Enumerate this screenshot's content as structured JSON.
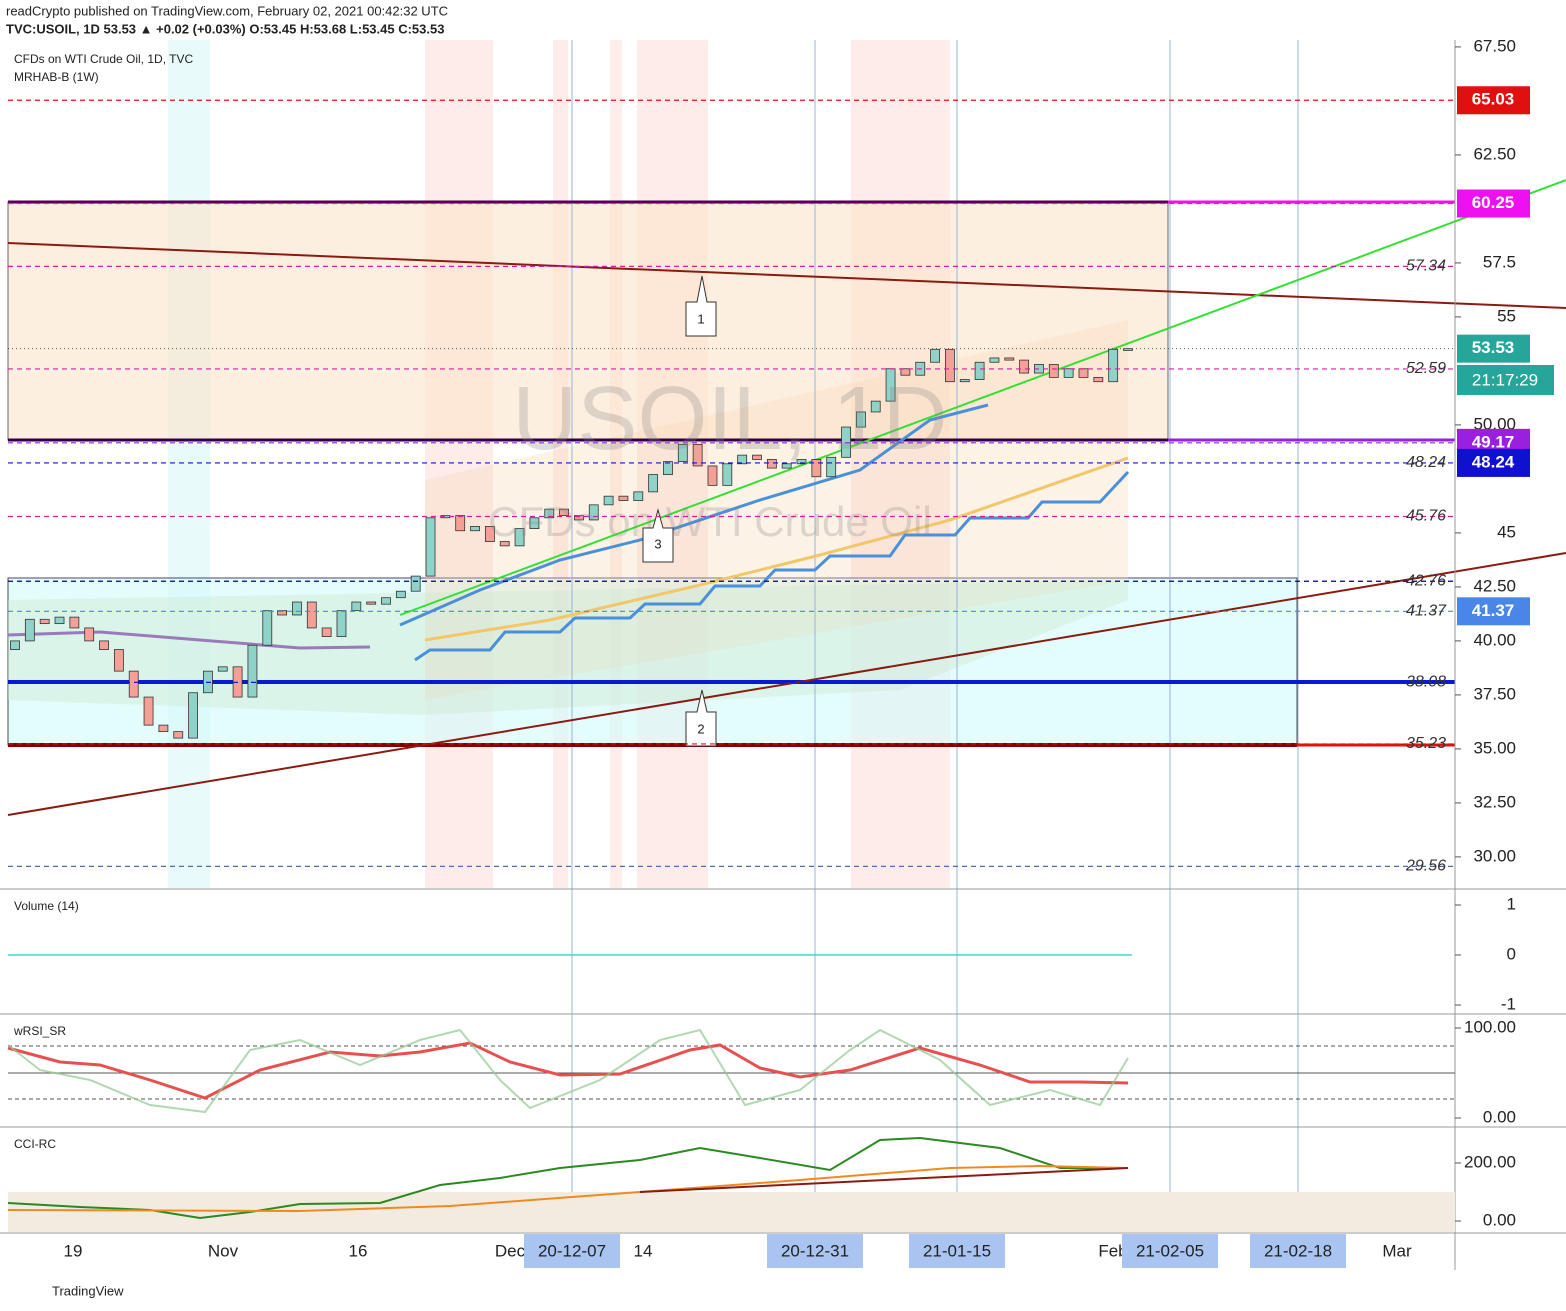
{
  "header": {
    "publisher": "readCrypto published on TradingView.com, February 02, 2021 00:42:32 UTC",
    "symbol_line": "TVC:USOIL, 1D 53.53 ▲ +0.02 (+0.03%) O:53.45 H:53.68 L:53.45 C:53.53"
  },
  "legend": [
    "CFDs on WTI Crude Oil, 1D, TVC",
    "MRHAB-B (1W)"
  ],
  "watermark": [
    "USOIL, 1D",
    "CFDs on WTI Crude Oil"
  ],
  "annotations": [
    "1",
    "2",
    "3"
  ],
  "countdown": "21:17:29",
  "time_labels": [
    "19",
    "Nov",
    "16",
    "Dec",
    "14",
    "20-12-07",
    "20-12-31",
    "21-01-15",
    "Feb",
    "21-02-05",
    "21-02-18",
    "Mar"
  ],
  "footer": "TradingView",
  "chart_data": {
    "type": "candlestick",
    "open": [
      39.6,
      40.0,
      41.0,
      40.8,
      41.1,
      40.6,
      40.0,
      39.6,
      38.6,
      37.4,
      36.1,
      35.8,
      35.5,
      37.6,
      38.6,
      38.8,
      37.4,
      39.8,
      41.4,
      41.2,
      41.8,
      40.6,
      40.2,
      41.4,
      41.8,
      41.7,
      42.0,
      42.3,
      43.0,
      45.7,
      45.8,
      45.1,
      45.3,
      44.6,
      44.4,
      45.2,
      45.7,
      46.1,
      45.8,
      45.6,
      46.3,
      46.7,
      46.5,
      46.9,
      47.7,
      48.3,
      49.1,
      48.1,
      47.2,
      48.2,
      48.6,
      48.4,
      48.0,
      48.2,
      48.4,
      47.6,
      48.5,
      49.9,
      50.6,
      51.1,
      52.6,
      52.3,
      52.9,
      53.5,
      52.0,
      52.1,
      52.9,
      53.1,
      53.0,
      52.4,
      52.8,
      52.2,
      52.6,
      52.2,
      52.0,
      53.45
    ],
    "close": [
      40.0,
      41.0,
      40.8,
      41.1,
      40.6,
      40.0,
      39.6,
      38.6,
      37.4,
      36.1,
      35.8,
      35.5,
      37.6,
      38.6,
      38.8,
      37.4,
      39.8,
      41.4,
      41.2,
      41.8,
      40.6,
      40.2,
      41.4,
      41.8,
      41.7,
      42.0,
      42.3,
      43.0,
      45.7,
      45.8,
      45.1,
      45.3,
      44.6,
      44.4,
      45.2,
      45.7,
      46.1,
      45.8,
      45.6,
      46.3,
      46.7,
      46.5,
      46.9,
      47.7,
      48.3,
      49.1,
      48.1,
      47.2,
      48.2,
      48.6,
      48.4,
      48.0,
      48.2,
      48.4,
      47.6,
      48.5,
      49.9,
      50.6,
      51.1,
      52.6,
      52.3,
      52.9,
      53.5,
      52.0,
      52.1,
      52.9,
      53.1,
      53.0,
      52.4,
      52.8,
      52.2,
      52.6,
      52.2,
      52.0,
      53.5,
      53.53
    ],
    "ylim": [
      28.56,
      67.82
    ],
    "yticks": [
      {
        "value": 67.5,
        "label": "67.50"
      },
      {
        "value": 62.5,
        "label": "62.50"
      },
      57.5,
      55,
      {
        "value": 50,
        "label": "50.00"
      },
      45,
      {
        "value": 42.5,
        "label": "42.50"
      },
      {
        "value": 40,
        "label": "40.00"
      },
      {
        "value": 37.5,
        "label": "37.50"
      },
      {
        "value": 35,
        "label": "35.00"
      },
      {
        "value": 32.5,
        "label": "32.50"
      },
      {
        "value": 30,
        "label": "30.00"
      }
    ],
    "levels": [
      {
        "value": 65.03,
        "color": "#e01010",
        "boxed": true,
        "italic": false
      },
      {
        "value": 60.25,
        "color": "#ee10ee",
        "boxed": true,
        "italic": false
      },
      {
        "value": 57.34,
        "color": "#d020a0",
        "boxed": false,
        "italic": true
      },
      {
        "value": 52.59,
        "color": "#d020a0",
        "boxed": false,
        "italic": true
      },
      {
        "value": 49.17,
        "color": "#9a20e0",
        "boxed": true,
        "italic": false
      },
      {
        "value": 48.24,
        "color": "#1010d0",
        "boxed": true,
        "italic": true
      },
      {
        "value": 45.76,
        "color": "#d020a0",
        "boxed": false,
        "italic": true
      },
      {
        "value": 42.76,
        "color": "#000080",
        "boxed": false,
        "italic": true
      },
      {
        "value": 41.37,
        "color": "#4a86e8",
        "boxed": true,
        "italic": true
      },
      {
        "value": 38.08,
        "color": "#0a1ad0",
        "boxed": false,
        "italic": true
      },
      {
        "value": 35.23,
        "color": "#e01010",
        "boxed": false,
        "italic": true
      },
      {
        "value": 29.56,
        "color": "#4a6fb0",
        "boxed": false,
        "italic": true
      }
    ],
    "last": 53.53,
    "last_color": "#26a69a",
    "panes": [
      {
        "title": "Volume (14)",
        "yticks": [
          1,
          0,
          -1
        ]
      },
      {
        "title": "wRSI_SR",
        "yticks": [
          {
            "value": 100,
            "label": "100.00"
          },
          {
            "value": 0,
            "label": "0.00"
          }
        ]
      },
      {
        "title": "CCI-RC",
        "yticks": [
          {
            "value": 200,
            "label": "200.00"
          },
          {
            "value": 0,
            "label": "0.00"
          }
        ]
      }
    ]
  }
}
